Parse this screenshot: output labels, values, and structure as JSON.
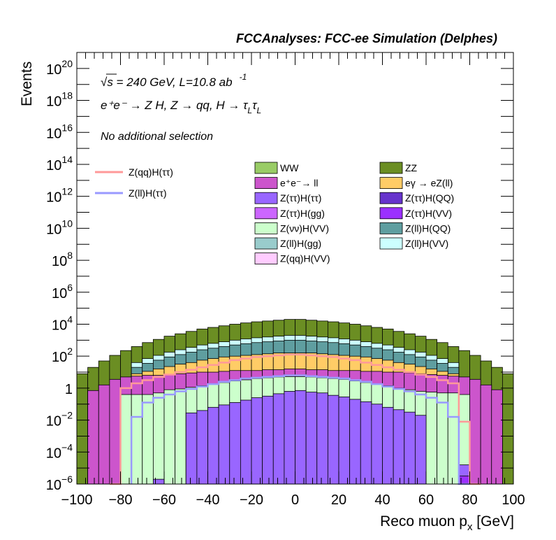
{
  "header": "FCCAnalyses: FCC-ee Simulation (Delphes)",
  "annotations": {
    "energy": "√s = 240 GeV, L=10.8 ab",
    "lumi_exp": "-1",
    "process": "e⁺e⁻ → Z H, Z → qq, H → τ",
    "tau_sub": "L",
    "tau2": "τ",
    "selection": "No additional selection"
  },
  "chart_data": {
    "type": "bar",
    "subtype": "stacked-histogram",
    "xlabel": "Reco muon p",
    "xlabel_sub": "x",
    "xlabel_unit": " [GeV]",
    "ylabel": "Events",
    "xlim": [
      -100,
      100
    ],
    "ylim": [
      1e-06,
      1e+21
    ],
    "log_y": true,
    "bin_width": 5,
    "x_ticks": [
      "−100",
      "−80",
      "−60",
      "−40",
      "−20",
      "0",
      "20",
      "40",
      "60",
      "80",
      "100"
    ],
    "y_ticks": [
      {
        "base": "10",
        "exp": "−6",
        "log": -6
      },
      {
        "base": "10",
        "exp": "−4",
        "log": -4
      },
      {
        "base": "10",
        "exp": "−2",
        "log": -2
      },
      {
        "base": "1",
        "exp": "",
        "log": 0
      },
      {
        "base": "10",
        "exp": "2",
        "log": 2
      },
      {
        "base": "10",
        "exp": "4",
        "log": 4
      },
      {
        "base": "10",
        "exp": "6",
        "log": 6
      },
      {
        "base": "10",
        "exp": "8",
        "log": 8
      },
      {
        "base": "10",
        "exp": "10",
        "log": 10
      },
      {
        "base": "10",
        "exp": "12",
        "log": 12
      },
      {
        "base": "10",
        "exp": "14",
        "log": 14
      },
      {
        "base": "10",
        "exp": "16",
        "log": 16
      },
      {
        "base": "10",
        "exp": "18",
        "log": 18
      },
      {
        "base": "10",
        "exp": "20",
        "log": 20
      }
    ],
    "stack_layers": [
      {
        "name": "Z(ττ)H(VV)",
        "color": "#9b30ff",
        "log_top": [
          null,
          null,
          null,
          null,
          null,
          null,
          null,
          null,
          null,
          null,
          null,
          null,
          null,
          null,
          null,
          null,
          null,
          null,
          null,
          null,
          null,
          null,
          null,
          null,
          null,
          null,
          null,
          null,
          null,
          null,
          null,
          null,
          null,
          null,
          null,
          -5.5,
          null,
          null,
          null,
          null
        ]
      },
      {
        "name": "Z(ττ)H(ττ)",
        "color": "#9966ff",
        "log_top": [
          null,
          null,
          null,
          null,
          null,
          null,
          null,
          -5.7,
          null,
          null,
          -1.55,
          -1.4,
          -1.2,
          -1.05,
          -0.9,
          -0.75,
          -0.6,
          -0.5,
          -0.35,
          -0.2,
          -0.15,
          -0.25,
          -0.3,
          -0.45,
          -0.55,
          -0.7,
          -0.85,
          -1.0,
          -1.2,
          -1.35,
          -1.5,
          -1.7,
          null,
          null,
          null,
          -4.8,
          null,
          null,
          null,
          null
        ]
      },
      {
        "name": "Z(νν)H(VV)",
        "color": "#ccffcc",
        "log_top": [
          null,
          null,
          null,
          null,
          -0.4,
          -0.4,
          -0.4,
          -0.3,
          -0.1,
          -0.05,
          0.05,
          0.15,
          0.25,
          0.35,
          0.45,
          0.52,
          0.6,
          0.65,
          0.7,
          0.72,
          0.72,
          0.7,
          0.65,
          0.6,
          0.55,
          0.45,
          0.35,
          0.25,
          0.15,
          0.0,
          -0.1,
          -0.2,
          -0.25,
          -0.3,
          -0.3,
          -0.4,
          null,
          null,
          null,
          null
        ]
      },
      {
        "name": "e⁺e⁻→ ll",
        "color": "#cc55cc",
        "log_top": [
          null,
          -0.15,
          0.2,
          0.55,
          0.7,
          0.75,
          0.8,
          0.8,
          0.85,
          0.9,
          0.95,
          1.0,
          1.0,
          1.05,
          1.1,
          1.1,
          1.1,
          1.15,
          1.15,
          1.2,
          1.2,
          1.15,
          1.15,
          1.1,
          1.1,
          1.1,
          1.05,
          1.05,
          1.0,
          1.0,
          0.95,
          0.9,
          0.85,
          0.8,
          0.75,
          0.7,
          0.55,
          0.2,
          -0.1,
          null
        ]
      },
      {
        "name": "eγ → eZ(ll)",
        "color": "#ffcc66",
        "log_top": [
          null,
          null,
          null,
          null,
          null,
          0.9,
          1.05,
          1.2,
          1.35,
          1.5,
          1.6,
          1.75,
          1.85,
          1.95,
          2.0,
          2.05,
          2.1,
          2.15,
          2.2,
          2.2,
          2.2,
          2.2,
          2.15,
          2.1,
          2.05,
          2.0,
          1.95,
          1.85,
          1.75,
          1.6,
          1.5,
          1.35,
          1.2,
          1.05,
          0.9,
          null,
          null,
          null,
          null,
          null
        ]
      },
      {
        "name": "Z(ll)H(QQ)",
        "color": "#5f9ea0",
        "log_top": [
          null,
          null,
          null,
          null,
          null,
          1.3,
          1.55,
          1.75,
          1.95,
          2.1,
          2.25,
          2.4,
          2.5,
          2.6,
          2.7,
          2.78,
          2.85,
          2.9,
          2.95,
          3.0,
          3.0,
          2.95,
          2.9,
          2.85,
          2.78,
          2.7,
          2.6,
          2.5,
          2.4,
          2.25,
          2.1,
          1.95,
          1.75,
          1.55,
          1.3,
          null,
          null,
          null,
          null,
          null
        ]
      },
      {
        "name": "Z(ll)H(VV)",
        "color": "#ccffff",
        "log_top": [
          null,
          null,
          null,
          null,
          null,
          1.6,
          1.85,
          2.05,
          2.25,
          2.4,
          2.55,
          2.7,
          2.8,
          2.9,
          3.0,
          3.08,
          3.15,
          3.2,
          3.25,
          3.3,
          3.3,
          3.25,
          3.2,
          3.15,
          3.08,
          3.0,
          2.9,
          2.8,
          2.7,
          2.55,
          2.4,
          2.25,
          2.05,
          1.85,
          1.6,
          null,
          null,
          null,
          null,
          null
        ]
      },
      {
        "name": "ZZ",
        "color": "#6b8e23",
        "log_top": [
          0.9,
          1.3,
          1.7,
          2.05,
          2.35,
          2.6,
          2.85,
          3.05,
          3.25,
          3.4,
          3.55,
          3.7,
          3.8,
          3.9,
          4.0,
          4.08,
          4.15,
          4.2,
          4.25,
          4.3,
          4.3,
          4.25,
          4.2,
          4.15,
          4.08,
          4.0,
          3.9,
          3.8,
          3.7,
          3.55,
          3.4,
          3.25,
          3.05,
          2.85,
          2.6,
          2.35,
          2.05,
          1.7,
          1.3,
          0.9
        ]
      }
    ],
    "lines": [
      {
        "name": "Z(qq)H(ττ)",
        "color": "#ff9999",
        "log_vals": [
          null,
          null,
          null,
          -6.1,
          0.0,
          0.3,
          0.5,
          0.7,
          0.85,
          1.0,
          1.15,
          1.3,
          1.45,
          1.6,
          1.75,
          1.85,
          1.95,
          2.0,
          2.05,
          2.1,
          2.1,
          2.05,
          2.0,
          1.95,
          1.85,
          1.75,
          1.6,
          1.45,
          1.3,
          1.15,
          1.0,
          0.85,
          0.7,
          0.5,
          0.3,
          -2.1,
          -6.1,
          null,
          null,
          null
        ]
      },
      {
        "name": "Z(ll)H(ττ)",
        "color": "#9999ff",
        "log_vals": [
          null,
          null,
          null,
          null,
          null,
          -1.8,
          -0.9,
          -0.6,
          -0.4,
          -0.2,
          -0.05,
          0.1,
          0.25,
          0.4,
          0.5,
          0.6,
          0.65,
          0.7,
          0.75,
          0.8,
          0.8,
          0.75,
          0.7,
          0.65,
          0.6,
          0.5,
          0.4,
          0.25,
          0.1,
          -0.05,
          -0.2,
          -0.4,
          -0.6,
          -0.9,
          -1.8,
          -6.1,
          null,
          null,
          null,
          null
        ]
      }
    ],
    "legend_lines": [
      {
        "label": "Z(qq)H(ττ)",
        "color": "#ff9999"
      },
      {
        "label": "Z(ll)H(ττ)",
        "color": "#9999ff"
      }
    ],
    "legend_boxes": [
      {
        "label": "WW",
        "color": "#99cc66"
      },
      {
        "label": "ZZ",
        "color": "#6b8e23"
      },
      {
        "label": "e⁺e⁻→ ll",
        "color": "#cc55cc"
      },
      {
        "label": "eγ → eZ(ll)",
        "color": "#ffcc66"
      },
      {
        "label": "Z(ττ)H(ττ)",
        "color": "#9966ff"
      },
      {
        "label": "Z(ττ)H(QQ)",
        "color": "#6633cc"
      },
      {
        "label": "Z(ττ)H(gg)",
        "color": "#cc66ff"
      },
      {
        "label": "Z(ττ)H(VV)",
        "color": "#9b30ff"
      },
      {
        "label": "Z(νν)H(VV)",
        "color": "#ccffcc"
      },
      {
        "label": "Z(ll)H(QQ)",
        "color": "#5f9ea0"
      },
      {
        "label": "Z(ll)H(gg)",
        "color": "#99cccc"
      },
      {
        "label": "Z(ll)H(VV)",
        "color": "#ccffff"
      },
      {
        "label": "Z(qq)H(VV)",
        "color": "#ffccff"
      }
    ]
  }
}
